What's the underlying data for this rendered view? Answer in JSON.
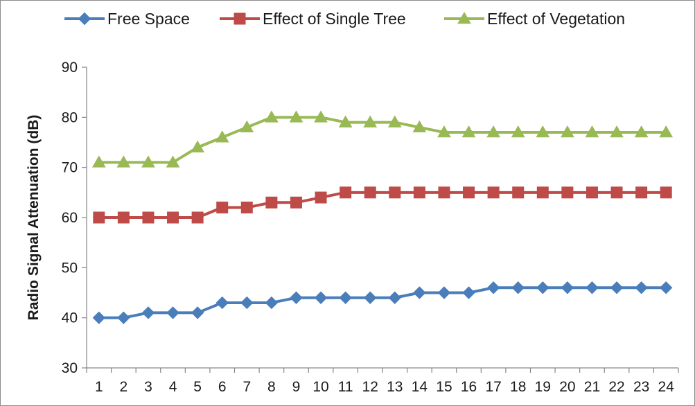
{
  "chart_data": {
    "type": "line",
    "title": "",
    "xlabel": "",
    "ylabel": "Radio Signal Attenuation (dB)",
    "ylim": [
      30,
      90
    ],
    "y_ticks": [
      "30",
      "40",
      "50",
      "60",
      "70",
      "80",
      "90"
    ],
    "categories": [
      "1",
      "2",
      "3",
      "4",
      "5",
      "6",
      "7",
      "8",
      "9",
      "10",
      "11",
      "12",
      "13",
      "14",
      "15",
      "16",
      "17",
      "18",
      "19",
      "20",
      "21",
      "22",
      "23",
      "24"
    ],
    "grid": false,
    "legend_position": "top",
    "series": [
      {
        "name": "Free Space",
        "color": "#4a7ebb",
        "marker": "diamond",
        "values": [
          40,
          40,
          41,
          41,
          41,
          43,
          43,
          43,
          44,
          44,
          44,
          44,
          44,
          45,
          45,
          45,
          46,
          46,
          46,
          46,
          46,
          46,
          46,
          46
        ]
      },
      {
        "name": "Effect of Single Tree",
        "color": "#be4b48",
        "marker": "square",
        "values": [
          60,
          60,
          60,
          60,
          60,
          62,
          62,
          63,
          63,
          64,
          65,
          65,
          65,
          65,
          65,
          65,
          65,
          65,
          65,
          65,
          65,
          65,
          65,
          65
        ]
      },
      {
        "name": "Effect of Vegetation",
        "color": "#98b954",
        "marker": "triangle",
        "values": [
          71,
          71,
          71,
          71,
          74,
          76,
          78,
          80,
          80,
          80,
          79,
          79,
          79,
          78,
          77,
          77,
          77,
          77,
          77,
          77,
          77,
          77,
          77,
          77
        ]
      }
    ]
  }
}
